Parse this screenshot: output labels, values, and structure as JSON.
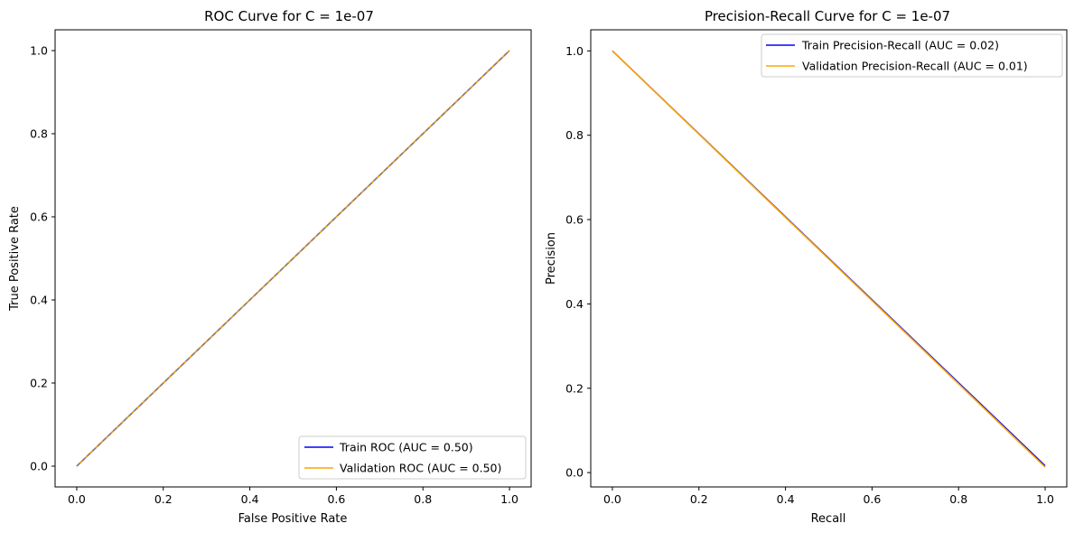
{
  "chart_data": [
    {
      "type": "line",
      "title": "ROC Curve for C = 1e-07",
      "xlabel": "False Positive Rate",
      "ylabel": "True Positive Rate",
      "xlim": [
        -0.05,
        1.05
      ],
      "ylim": [
        -0.05,
        1.05
      ],
      "xticks": [
        "0.0",
        "0.2",
        "0.4",
        "0.6",
        "0.8",
        "1.0"
      ],
      "yticks": [
        "0.0",
        "0.2",
        "0.4",
        "0.6",
        "0.8",
        "1.0"
      ],
      "grid": false,
      "legend_position": "lower right",
      "series": [
        {
          "name": "Train ROC (AUC = 0.50)",
          "color": "#0000ff",
          "x": [
            0,
            1
          ],
          "y": [
            0,
            1
          ]
        },
        {
          "name": "Validation ROC (AUC = 0.50)",
          "color": "#ffa500",
          "x": [
            0,
            1
          ],
          "y": [
            0,
            1
          ]
        }
      ],
      "reference_line": {
        "x": [
          0,
          1
        ],
        "y": [
          0,
          1
        ],
        "style": "dashed",
        "color": "#808080"
      }
    },
    {
      "type": "line",
      "title": "Precision-Recall Curve for C = 1e-07",
      "xlabel": "Recall",
      "ylabel": "Precision",
      "xlim": [
        -0.05,
        1.05
      ],
      "ylim": [
        -0.034,
        1.05
      ],
      "xticks": [
        "0.0",
        "0.2",
        "0.4",
        "0.6",
        "0.8",
        "1.0"
      ],
      "yticks": [
        "0.0",
        "0.2",
        "0.4",
        "0.6",
        "0.8",
        "1.0"
      ],
      "grid": false,
      "legend_position": "upper right",
      "series": [
        {
          "name": "Train Precision-Recall (AUC = 0.02)",
          "color": "#0000ff",
          "x": [
            0,
            1
          ],
          "y": [
            1,
            0.016
          ]
        },
        {
          "name": "Validation Precision-Recall (AUC = 0.01)",
          "color": "#ffa500",
          "x": [
            0,
            1
          ],
          "y": [
            1,
            0.013
          ]
        }
      ]
    }
  ]
}
